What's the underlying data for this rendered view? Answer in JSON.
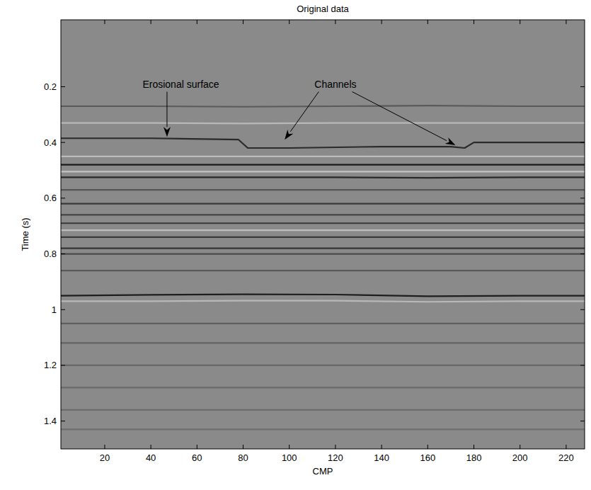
{
  "chart_data": {
    "type": "seismic",
    "title": "Original data",
    "x_label": "CMP",
    "y_label": "Time (s)",
    "xlim": [
      1,
      228
    ],
    "ylim": [
      -0.04,
      1.5
    ],
    "xticks": [
      20,
      40,
      60,
      80,
      100,
      120,
      140,
      160,
      180,
      200,
      220
    ],
    "yticks": [
      0.2,
      0.4,
      0.6,
      0.8,
      1,
      1.2,
      1.4
    ],
    "color": "#8a8a8a",
    "x": [
      1,
      40,
      80,
      120,
      160,
      200,
      228
    ],
    "series": [
      {
        "color": "#5a5a5a",
        "values": [
          0.27,
          0.27,
          0.272,
          0.27,
          0.268,
          0.27,
          0.27
        ]
      },
      {
        "color": "#b8b8b8",
        "values": [
          0.33,
          0.33,
          0.332,
          0.33,
          0.33,
          0.33,
          0.33
        ]
      },
      {
        "color": "#2a2a2a",
        "x": [
          1,
          40,
          78,
          82,
          100,
          140,
          170,
          176,
          180,
          228
        ],
        "values": [
          0.385,
          0.385,
          0.39,
          0.42,
          0.42,
          0.415,
          0.415,
          0.42,
          0.4,
          0.4
        ]
      },
      {
        "color": "#bcbcbc",
        "values": [
          0.45,
          0.45,
          0.45,
          0.45,
          0.45,
          0.45,
          0.45
        ]
      },
      {
        "color": "#1a1a1a",
        "values": [
          0.48,
          0.48,
          0.48,
          0.48,
          0.48,
          0.48,
          0.48
        ]
      },
      {
        "color": "#c4c4c4",
        "values": [
          0.505,
          0.505,
          0.505,
          0.505,
          0.505,
          0.505,
          0.505
        ]
      },
      {
        "color": "#2a2a2a",
        "values": [
          0.525,
          0.525,
          0.525,
          0.525,
          0.527,
          0.525,
          0.525
        ]
      },
      {
        "color": "#555555",
        "values": [
          0.57,
          0.57,
          0.57,
          0.57,
          0.57,
          0.57,
          0.57
        ]
      },
      {
        "color": "#3a3a3a",
        "values": [
          0.62,
          0.62,
          0.62,
          0.62,
          0.62,
          0.62,
          0.62
        ]
      },
      {
        "color": "#444444",
        "values": [
          0.66,
          0.66,
          0.66,
          0.66,
          0.66,
          0.66,
          0.66
        ]
      },
      {
        "color": "#3a3a3a",
        "values": [
          0.69,
          0.69,
          0.69,
          0.69,
          0.69,
          0.69,
          0.69
        ]
      },
      {
        "color": "#bdbdbd",
        "values": [
          0.715,
          0.715,
          0.715,
          0.715,
          0.715,
          0.715,
          0.715
        ]
      },
      {
        "color": "#3a3a3a",
        "values": [
          0.74,
          0.74,
          0.74,
          0.74,
          0.74,
          0.74,
          0.74
        ]
      },
      {
        "color": "#333333",
        "values": [
          0.78,
          0.78,
          0.78,
          0.78,
          0.78,
          0.78,
          0.78
        ]
      },
      {
        "color": "#4a4a4a",
        "values": [
          0.8,
          0.8,
          0.8,
          0.8,
          0.8,
          0.8,
          0.8
        ]
      },
      {
        "color": "#5a5a5a",
        "values": [
          0.86,
          0.86,
          0.86,
          0.86,
          0.86,
          0.86,
          0.86
        ]
      },
      {
        "color": "#1e1e1e",
        "values": [
          0.95,
          0.947,
          0.945,
          0.946,
          0.952,
          0.95,
          0.95
        ]
      },
      {
        "color": "#b8b8b8",
        "values": [
          0.97,
          0.97,
          0.968,
          0.968,
          0.972,
          0.97,
          0.97
        ]
      },
      {
        "color": "#606060",
        "values": [
          1.05,
          1.05,
          1.05,
          1.05,
          1.05,
          1.05,
          1.05
        ]
      },
      {
        "color": "#636363",
        "values": [
          1.12,
          1.12,
          1.12,
          1.12,
          1.12,
          1.12,
          1.12
        ]
      },
      {
        "color": "#686868",
        "values": [
          1.2,
          1.2,
          1.2,
          1.2,
          1.2,
          1.2,
          1.2
        ]
      },
      {
        "color": "#6a6a6a",
        "values": [
          1.28,
          1.28,
          1.28,
          1.28,
          1.28,
          1.28,
          1.28
        ]
      },
      {
        "color": "#6c6c6c",
        "values": [
          1.36,
          1.36,
          1.36,
          1.36,
          1.36,
          1.36,
          1.36
        ]
      },
      {
        "color": "#6e6e6e",
        "values": [
          1.43,
          1.43,
          1.43,
          1.43,
          1.43,
          1.43,
          1.43
        ]
      }
    ],
    "annotations": [
      {
        "text": "Erosional surface",
        "x": 53,
        "y": 0.19,
        "targets": [
          [
            47,
            0.38
          ]
        ]
      },
      {
        "text": "Channels",
        "x": 120,
        "y": 0.19,
        "targets": [
          [
            98,
            0.39
          ],
          [
            172,
            0.41
          ]
        ]
      }
    ]
  }
}
